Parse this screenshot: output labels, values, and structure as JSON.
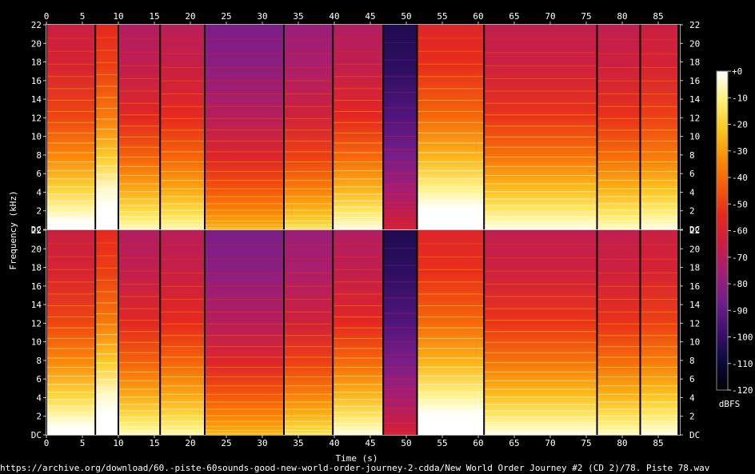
{
  "chart_data": {
    "type": "heatmap",
    "title": "",
    "xlabel": "Time (s)",
    "ylabel": "Frequency (kHz)",
    "xlim": [
      0,
      88
    ],
    "x_ticks": [
      0,
      5,
      10,
      15,
      20,
      25,
      30,
      35,
      40,
      45,
      50,
      55,
      60,
      65,
      70,
      75,
      80,
      85
    ],
    "x_tick_labels": [
      "0",
      "5",
      "10",
      "15",
      "20",
      "25",
      "30",
      "35",
      "40",
      "45",
      "50",
      "55",
      "60",
      "65",
      "70",
      "75",
      "80",
      "85"
    ],
    "ylim_khz": [
      0,
      22
    ],
    "y_ticks": [
      0,
      2,
      4,
      6,
      8,
      10,
      12,
      14,
      16,
      18,
      20,
      22
    ],
    "y_tick_labels": [
      "DC",
      "2",
      "4",
      "6",
      "8",
      "10",
      "12",
      "14",
      "16",
      "18",
      "20",
      "22"
    ],
    "channels": 2,
    "colorbar": {
      "label": "dBFS",
      "range": [
        -120,
        0
      ],
      "ticks": [
        0,
        -10,
        -20,
        -30,
        -40,
        -50,
        -60,
        -70,
        -80,
        -90,
        -100,
        -110,
        -120
      ],
      "tick_labels": [
        "+0",
        "-10",
        "-20",
        "-30",
        "-40",
        "-50",
        "-60",
        "-70",
        "-80",
        "-90",
        "-100",
        "-110",
        "-120"
      ],
      "colors": [
        "#000000",
        "#0a0a3c",
        "#3c0f6e",
        "#6e1e8c",
        "#a01e78",
        "#c81e46",
        "#e6281e",
        "#f55a0a",
        "#fa8c0a",
        "#fac81e",
        "#fff078",
        "#ffffff"
      ]
    },
    "segments": [
      {
        "start": 0.0,
        "end": 6.8,
        "level_db": -55,
        "bright": 0.9
      },
      {
        "start": 6.8,
        "end": 10.0,
        "level_db": -45,
        "bright": 1.0
      },
      {
        "start": 10.0,
        "end": 15.8,
        "level_db": -62,
        "bright": 0.85
      },
      {
        "start": 15.8,
        "end": 22.0,
        "level_db": -60,
        "bright": 0.8
      },
      {
        "start": 22.0,
        "end": 33.0,
        "level_db": -75,
        "bright": 0.75
      },
      {
        "start": 33.0,
        "end": 39.8,
        "level_db": -68,
        "bright": 0.8
      },
      {
        "start": 39.8,
        "end": 46.8,
        "level_db": -62,
        "bright": 0.9
      },
      {
        "start": 46.8,
        "end": 51.5,
        "level_db": -95,
        "bright": 0.5
      },
      {
        "start": 51.5,
        "end": 60.8,
        "level_db": -48,
        "bright": 0.95
      },
      {
        "start": 60.8,
        "end": 76.5,
        "level_db": -58,
        "bright": 0.85
      },
      {
        "start": 76.5,
        "end": 82.5,
        "level_db": -58,
        "bright": 0.8
      },
      {
        "start": 82.5,
        "end": 87.8,
        "level_db": -55,
        "bright": 0.8
      }
    ],
    "footer_text": "https://archive.org/download/60.-piste-60sounds-good-new-world-order-journey-2-cdda/New World Order Journey #2 (CD 2)/78. Piste 78.wav"
  }
}
